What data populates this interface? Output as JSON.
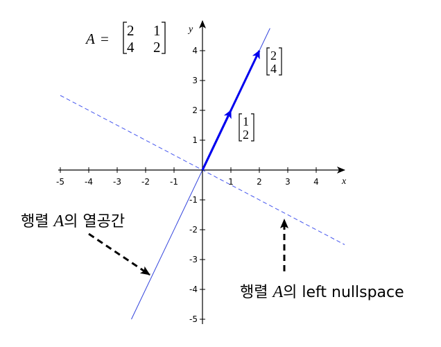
{
  "axes": {
    "x_label": "x",
    "y_label": "y",
    "x_ticks": [
      "-5",
      "-4",
      "-3",
      "-2",
      "-1",
      "1",
      "2",
      "3",
      "4"
    ],
    "y_ticks": [
      "4",
      "3",
      "2",
      "1",
      "-1",
      "-2",
      "-3",
      "-4",
      "-5"
    ]
  },
  "matrix": {
    "name": "A",
    "equals": "=",
    "row1": [
      "2",
      "1"
    ],
    "row2": [
      "4",
      "2"
    ]
  },
  "vectors": {
    "short": {
      "top": "1",
      "bottom": "2"
    },
    "long": {
      "top": "2",
      "bottom": "4"
    }
  },
  "annotations": {
    "column_space": {
      "prefix": "행렬 ",
      "var": "A",
      "suffix": "의 열공간"
    },
    "left_nullspace": {
      "prefix": "행렬 ",
      "var": "A",
      "suffix": "의 left nullspace"
    }
  },
  "colors": {
    "vector": "#0000ee",
    "line": "#3344dd",
    "dashed": "#4455ee",
    "axis": "#000000"
  },
  "chart_data": {
    "type": "line",
    "title": "",
    "xlabel": "x",
    "ylabel": "y",
    "xlim": [
      -5,
      4
    ],
    "ylim": [
      -5,
      4
    ],
    "series": [
      {
        "name": "column space",
        "slope": 2,
        "style": "solid"
      },
      {
        "name": "left nullspace",
        "slope": -0.5,
        "style": "dashed"
      }
    ],
    "vectors": [
      {
        "name": "[1,2]",
        "x": 1,
        "y": 2
      },
      {
        "name": "[2,4]",
        "x": 2,
        "y": 4
      }
    ]
  }
}
